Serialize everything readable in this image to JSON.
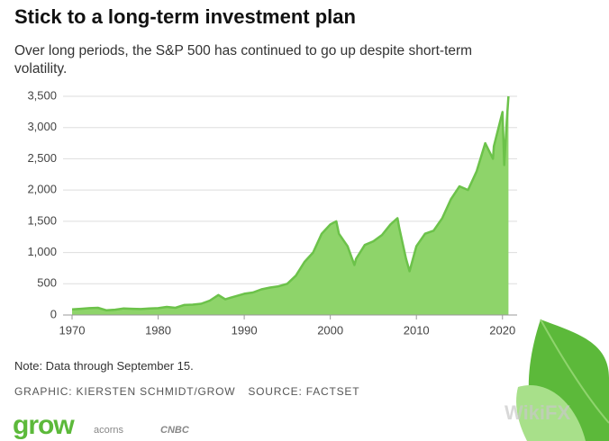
{
  "chart_data": {
    "type": "area",
    "title": "Stick to a long-term investment plan",
    "subtitle": "Over long periods, the S&P 500 has continued to go up despite short-term volatility.",
    "note": "Note: Data through September 15.",
    "graphic_credit": "GRAPHIC: KIERSTEN SCHMIDT/GROW",
    "source": "SOURCE: FACTSET",
    "brand": "grow",
    "partners": [
      "acorns",
      "CNBC"
    ],
    "watermark": "WikiFX",
    "color": "#8ed46a",
    "line_color": "#6cc24a",
    "grid": true,
    "x": [
      1970,
      1971,
      1972,
      1973,
      1974,
      1975,
      1976,
      1977,
      1978,
      1979,
      1980,
      1981,
      1982,
      1983,
      1984,
      1985,
      1986,
      1987,
      1987.8,
      1988,
      1989,
      1990,
      1991,
      1992,
      1993,
      1994,
      1995,
      1996,
      1997,
      1998,
      1999,
      2000,
      2000.7,
      2001,
      2002,
      2002.8,
      2003,
      2004,
      2005,
      2006,
      2007,
      2007.8,
      2008,
      2008.8,
      2009.2,
      2010,
      2011,
      2012,
      2013,
      2014,
      2015,
      2016,
      2017,
      2018,
      2018.9,
      2019,
      2020,
      2020.2,
      2020.5,
      2020.7
    ],
    "values": [
      90,
      100,
      110,
      115,
      75,
      85,
      105,
      100,
      95,
      105,
      110,
      130,
      115,
      160,
      165,
      180,
      230,
      320,
      250,
      260,
      300,
      340,
      360,
      410,
      440,
      460,
      500,
      630,
      850,
      1000,
      1300,
      1450,
      1500,
      1300,
      1100,
      800,
      900,
      1120,
      1180,
      1280,
      1450,
      1550,
      1400,
      900,
      700,
      1100,
      1300,
      1350,
      1550,
      1850,
      2060,
      2000,
      2300,
      2750,
      2500,
      2700,
      3250,
      2400,
      3100,
      3500
    ],
    "xlim": [
      1970,
      2021.7
    ],
    "xticks": [
      1970,
      1980,
      1990,
      2000,
      2010,
      2020
    ],
    "ylim": [
      0,
      3500
    ],
    "yticks": [
      0,
      500,
      {
        "value": 1000,
        "label": "1,000"
      },
      {
        "value": 1500,
        "label": "1,500"
      },
      {
        "value": 2000,
        "label": "2,000"
      },
      {
        "value": 2500,
        "label": "2,500"
      },
      {
        "value": 3000,
        "label": "3,000"
      },
      {
        "value": 3500,
        "label": "3,500"
      }
    ]
  }
}
